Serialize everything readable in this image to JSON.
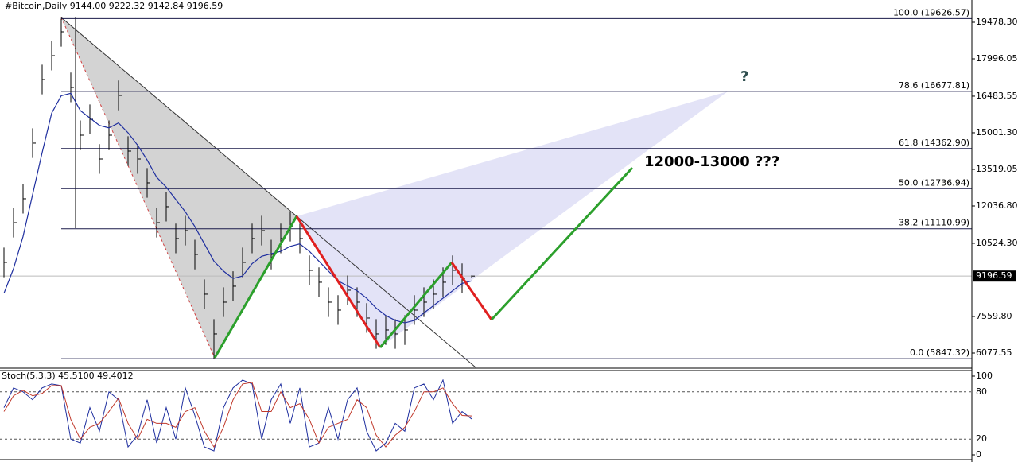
{
  "chart_data": {
    "type": "ohlc",
    "header": "#Bitcoin,Daily  9144.00 9222.32 9142.84 9196.59",
    "ylim": [
      5498,
      20380
    ],
    "yticks": [
      {
        "value": 19478.3,
        "label": "19478.30"
      },
      {
        "value": 17996.05,
        "label": "17996.05"
      },
      {
        "value": 16483.55,
        "label": "16483.55"
      },
      {
        "value": 15001.3,
        "label": "15001.30"
      },
      {
        "value": 13519.05,
        "label": "13519.05"
      },
      {
        "value": 12036.8,
        "label": "12036.80"
      },
      {
        "value": 10524.3,
        "label": "10524.30"
      },
      {
        "value": 7559.8,
        "label": "7559.80"
      },
      {
        "value": 6077.55,
        "label": "6077.55"
      }
    ],
    "last_price": 9196.59,
    "high": [
      10350,
      11960,
      12930,
      15180,
      17760,
      18730,
      19626.57,
      17440,
      15500,
      16150,
      14540,
      15500,
      17120,
      14860,
      14540,
      13570,
      11960,
      12610,
      11320,
      11640,
      10670,
      9060,
      7450,
      8740,
      9390,
      10350,
      11320,
      11640,
      10670,
      11320,
      11800,
      11320,
      10030,
      9550,
      8740,
      8420,
      9220,
      8740,
      8100,
      7450,
      7610,
      7450,
      7610,
      8420,
      8740,
      9060,
      9550,
      10030,
      9710,
      9222.32
    ],
    "low": [
      9150,
      10760,
      11730,
      13980,
      16560,
      17530,
      18490,
      16240,
      14300,
      14950,
      13340,
      14300,
      15910,
      13660,
      13340,
      12370,
      10760,
      11410,
      10120,
      10440,
      9470,
      7860,
      5847.32,
      7540,
      8190,
      9150,
      10120,
      10440,
      9470,
      10120,
      10600,
      10120,
      8830,
      8350,
      7540,
      7220,
      8020,
      7540,
      6900,
      6250,
      6410,
      6250,
      6410,
      7220,
      7540,
      7860,
      8350,
      8830,
      8510,
      9142.84
    ],
    "close": [
      9751,
      11361,
      12328,
      14583,
      17159,
      18125,
      19092,
      16837,
      14904,
      15548,
      13938,
      14904,
      16515,
      14260,
      13938,
      12972,
      11361,
      12006,
      10717,
      11039,
      10073,
      8463,
      6852,
      8140,
      8785,
      9751,
      10717,
      11039,
      10073,
      10717,
      11200,
      10717,
      9429,
      8946,
      8140,
      7818,
      8624,
      8140,
      7496,
      6852,
      7013,
      6852,
      7013,
      7818,
      8140,
      8463,
      8946,
      9429,
      9107,
      9196.59
    ],
    "ma": {
      "color": "#1f2f9f",
      "values": [
        8500,
        9500,
        10800,
        12500,
        14200,
        15800,
        16500,
        16600,
        15900,
        15600,
        15300,
        15200,
        15400,
        15000,
        14500,
        13900,
        13200,
        12800,
        12300,
        11800,
        11200,
        10500,
        9800,
        9400,
        9100,
        9200,
        9700,
        10000,
        10100,
        10200,
        10400,
        10500,
        10200,
        9800,
        9400,
        9000,
        8800,
        8600,
        8300,
        7900,
        7600,
        7400,
        7300,
        7400,
        7700,
        8000,
        8300,
        8600,
        8900,
        9000
      ]
    },
    "fib_levels": [
      {
        "label": "100.0 (19626.57)",
        "value": 19626.57
      },
      {
        "label": "78.6 (16677.81)",
        "value": 16677.81
      },
      {
        "label": "61.8 (14362.90)",
        "value": 14362.9
      },
      {
        "label": "50.0 (12736.94)",
        "value": 12736.94
      },
      {
        "label": "38.2 (11110.99)",
        "value": 11110.99
      },
      {
        "label": "0.0 (5847.32)",
        "value": 5847.32
      }
    ],
    "annotations": [
      "12000-13000 ???",
      "?"
    ],
    "stoch": {
      "title": "Stoch(5,3,3) 45.5100 49.4012",
      "ylim": [
        0,
        100
      ],
      "yticks": [
        100,
        80,
        20,
        0
      ],
      "series": [
        {
          "color": "#1f2f9f",
          "values": [
            60,
            85,
            80,
            70,
            85,
            90,
            88,
            20,
            15,
            60,
            30,
            80,
            70,
            10,
            25,
            70,
            15,
            60,
            20,
            85,
            50,
            10,
            5,
            60,
            85,
            95,
            90,
            20,
            70,
            90,
            40,
            85,
            10,
            15,
            60,
            20,
            70,
            85,
            30,
            5,
            15,
            40,
            30,
            85,
            90,
            70,
            95,
            40,
            55,
            45.51
          ]
        },
        {
          "color": "#c0392b",
          "values": [
            55,
            75,
            82,
            75,
            78,
            88,
            88,
            45,
            20,
            35,
            40,
            55,
            72,
            40,
            20,
            45,
            40,
            40,
            35,
            55,
            60,
            30,
            10,
            35,
            70,
            90,
            92,
            55,
            55,
            80,
            60,
            65,
            45,
            15,
            35,
            40,
            45,
            70,
            60,
            25,
            10,
            25,
            35,
            55,
            80,
            80,
            85,
            65,
            50,
            49.4012
          ]
        }
      ]
    }
  }
}
